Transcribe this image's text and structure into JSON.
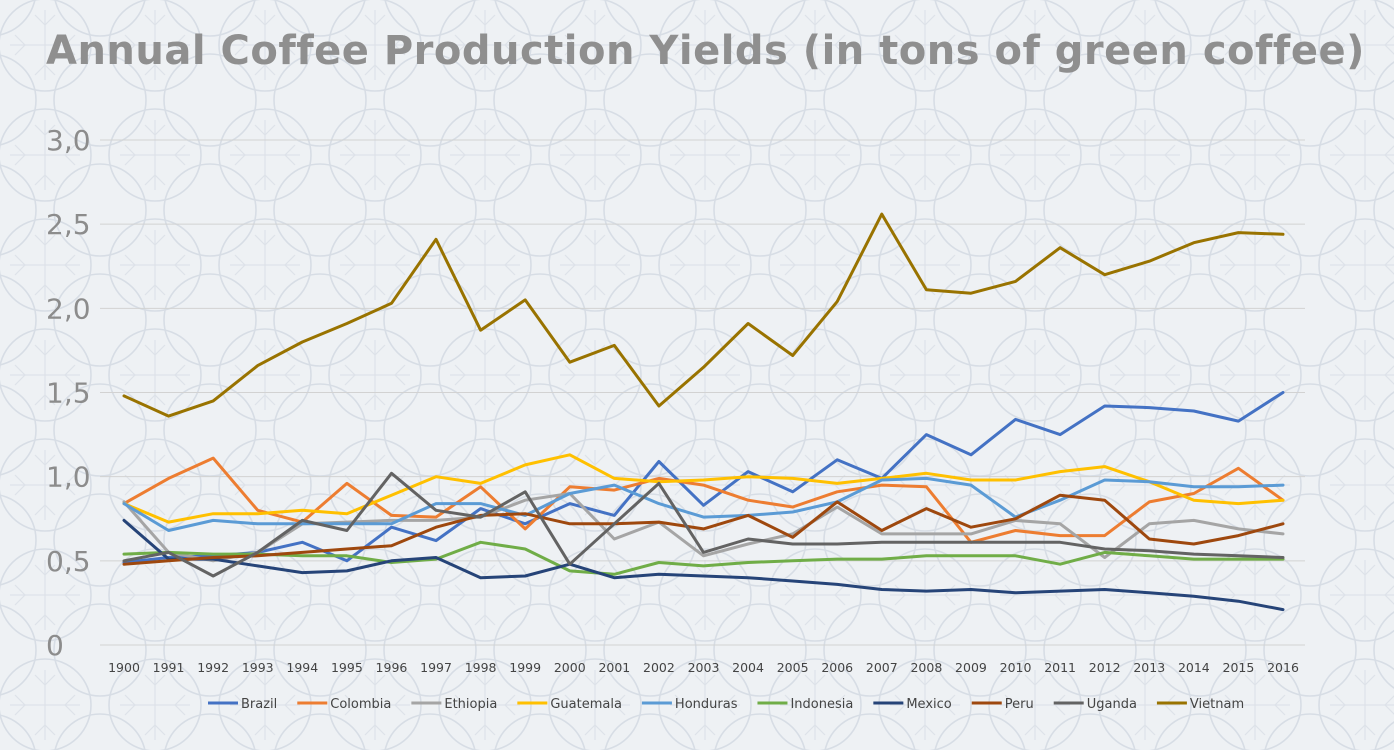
{
  "chart_data": {
    "type": "line",
    "title": "Annual Coffee Production Yields (in tons of green coffee)",
    "xlabel": "",
    "ylabel": "",
    "ylim": [
      0,
      3.0
    ],
    "y_ticks": [
      "0",
      "0,5",
      "1,0",
      "1,5",
      "2,0",
      "2,5",
      "3,0"
    ],
    "y_tick_values": [
      0,
      0.5,
      1.0,
      1.5,
      2.0,
      2.5,
      3.0
    ],
    "grid": true,
    "legend_position": "bottom",
    "categories": [
      "1900",
      "1991",
      "1992",
      "1993",
      "1994",
      "1995",
      "1996",
      "1997",
      "1998",
      "1999",
      "2000",
      "2001",
      "2002",
      "2003",
      "2004",
      "2005",
      "2006",
      "2007",
      "2008",
      "2009",
      "2010",
      "2011",
      "2012",
      "2013",
      "2014",
      "2015",
      "2016"
    ],
    "series": [
      {
        "name": "Brazil",
        "color": "#4472c4",
        "values": [
          0.49,
          0.52,
          0.53,
          0.55,
          0.61,
          0.5,
          0.7,
          0.62,
          0.81,
          0.72,
          0.84,
          0.77,
          1.09,
          0.83,
          1.03,
          0.91,
          1.1,
          0.99,
          1.25,
          1.13,
          1.34,
          1.25,
          1.42,
          1.41,
          1.39,
          1.33,
          1.5
        ]
      },
      {
        "name": "Colombia",
        "color": "#ed7d31",
        "values": [
          0.84,
          0.99,
          1.11,
          0.8,
          0.73,
          0.96,
          0.77,
          0.76,
          0.94,
          0.69,
          0.94,
          0.92,
          0.99,
          0.95,
          0.86,
          0.82,
          0.91,
          0.95,
          0.94,
          0.61,
          0.68,
          0.65,
          0.65,
          0.85,
          0.9,
          1.05,
          0.86
        ]
      },
      {
        "name": "Ethiopia",
        "color": "#a5a5a5",
        "values": [
          0.85,
          0.55,
          0.5,
          0.55,
          0.72,
          0.73,
          0.74,
          0.74,
          0.76,
          0.86,
          0.9,
          0.63,
          0.73,
          0.53,
          0.6,
          0.66,
          0.82,
          0.66,
          0.66,
          0.66,
          0.74,
          0.72,
          0.52,
          0.72,
          0.74,
          0.69,
          0.66
        ]
      },
      {
        "name": "Guatemala",
        "color": "#ffc000",
        "values": [
          0.84,
          0.73,
          0.78,
          0.78,
          0.8,
          0.78,
          0.89,
          1.0,
          0.96,
          1.07,
          1.13,
          0.99,
          0.97,
          0.98,
          1.0,
          0.99,
          0.96,
          0.99,
          1.02,
          0.98,
          0.98,
          1.03,
          1.06,
          0.97,
          0.86,
          0.84,
          0.86
        ]
      },
      {
        "name": "Honduras",
        "color": "#5b9bd5",
        "values": [
          0.84,
          0.68,
          0.74,
          0.72,
          0.72,
          0.72,
          0.72,
          0.84,
          0.84,
          0.77,
          0.9,
          0.95,
          0.84,
          0.76,
          0.77,
          0.79,
          0.85,
          0.98,
          0.99,
          0.95,
          0.76,
          0.86,
          0.98,
          0.97,
          0.94,
          0.94,
          0.95
        ]
      },
      {
        "name": "Indonesia",
        "color": "#70ad47",
        "values": [
          0.54,
          0.55,
          0.54,
          0.54,
          0.53,
          0.53,
          0.49,
          0.51,
          0.61,
          0.57,
          0.44,
          0.42,
          0.49,
          0.47,
          0.49,
          0.5,
          0.51,
          0.51,
          0.53,
          0.53,
          0.53,
          0.48,
          0.55,
          0.53,
          0.51,
          0.51,
          0.51
        ]
      },
      {
        "name": "Mexico",
        "color": "#264478",
        "values": [
          0.74,
          0.51,
          0.51,
          0.47,
          0.43,
          0.44,
          0.5,
          0.52,
          0.4,
          0.41,
          0.48,
          0.4,
          0.42,
          0.41,
          0.4,
          0.38,
          0.36,
          0.33,
          0.32,
          0.33,
          0.31,
          0.32,
          0.33,
          0.31,
          0.29,
          0.26,
          0.21
        ]
      },
      {
        "name": "Peru",
        "color": "#9e480e",
        "values": [
          0.48,
          0.5,
          0.52,
          0.53,
          0.55,
          0.57,
          0.59,
          0.7,
          0.77,
          0.78,
          0.72,
          0.72,
          0.73,
          0.69,
          0.77,
          0.64,
          0.85,
          0.68,
          0.81,
          0.7,
          0.75,
          0.89,
          0.86,
          0.63,
          0.6,
          0.65,
          0.72
        ]
      },
      {
        "name": "Uganda",
        "color": "#636363",
        "values": [
          0.5,
          0.55,
          0.41,
          0.55,
          0.74,
          0.68,
          1.02,
          0.8,
          0.76,
          0.91,
          0.48,
          0.72,
          0.96,
          0.55,
          0.63,
          0.6,
          0.6,
          0.61,
          0.61,
          0.61,
          0.61,
          0.61,
          0.57,
          0.56,
          0.54,
          0.53,
          0.52
        ]
      },
      {
        "name": "Vietnam",
        "color": "#997300",
        "values": [
          1.48,
          1.36,
          1.45,
          1.66,
          1.8,
          1.91,
          2.03,
          2.41,
          1.87,
          2.05,
          1.68,
          1.78,
          1.42,
          1.65,
          1.91,
          1.72,
          2.04,
          2.56,
          2.11,
          2.09,
          2.16,
          2.36,
          2.2,
          2.28,
          2.39,
          2.45,
          2.44
        ]
      }
    ]
  }
}
